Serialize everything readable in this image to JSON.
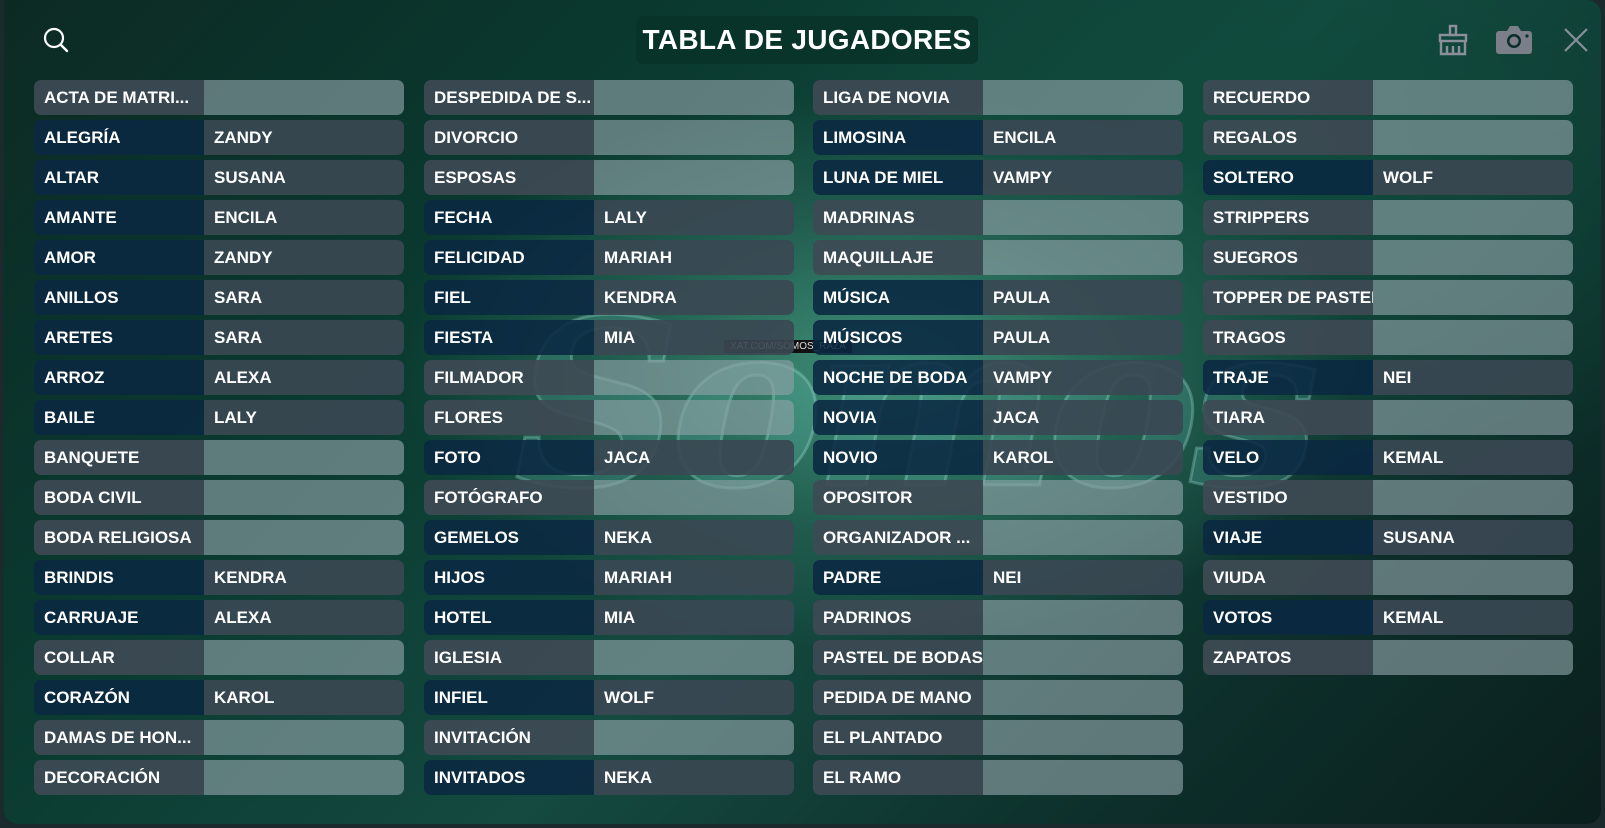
{
  "title": "TABLA DE JUGADORES",
  "icons": {
    "search": "search-icon",
    "clean": "broom-icon",
    "camera": "camera-icon",
    "close": "close-icon"
  },
  "watermark": {
    "text": "Somos Raza",
    "tag": "XAT.COM/SOMOS_RAZA"
  },
  "columns": [
    [
      [
        "ACTA DE MATRI...",
        ""
      ],
      [
        "ALEGRÍA",
        "ZANDY"
      ],
      [
        "ALTAR",
        "SUSANA"
      ],
      [
        "AMANTE",
        "ENCILA"
      ],
      [
        "AMOR",
        "ZANDY"
      ],
      [
        "ANILLOS",
        "SARA"
      ],
      [
        "ARETES",
        "SARA"
      ],
      [
        "ARROZ",
        "ALEXA"
      ],
      [
        "BAILE",
        "LALY"
      ],
      [
        "BANQUETE",
        ""
      ],
      [
        "BODA CIVIL",
        ""
      ],
      [
        "BODA RELIGIOSA",
        ""
      ],
      [
        "BRINDIS",
        "KENDRA"
      ],
      [
        "CARRUAJE",
        "ALEXA"
      ],
      [
        "COLLAR",
        ""
      ],
      [
        "CORAZÓN",
        "KAROL"
      ],
      [
        "DAMAS DE HON...",
        ""
      ],
      [
        "DECORACIÓN",
        ""
      ]
    ],
    [
      [
        "DESPEDIDA DE S...",
        ""
      ],
      [
        "DIVORCIO",
        ""
      ],
      [
        "ESPOSAS",
        ""
      ],
      [
        "FECHA",
        "LALY"
      ],
      [
        "FELICIDAD",
        "MARIAH"
      ],
      [
        "FIEL",
        "KENDRA"
      ],
      [
        "FIESTA",
        "MIA"
      ],
      [
        "FILMADOR",
        ""
      ],
      [
        "FLORES",
        ""
      ],
      [
        "FOTO",
        "JACA"
      ],
      [
        "FOTÓGRAFO",
        ""
      ],
      [
        "GEMELOS",
        "NEKA"
      ],
      [
        "HIJOS",
        "MARIAH"
      ],
      [
        "HOTEL",
        "MIA"
      ],
      [
        "IGLESIA",
        ""
      ],
      [
        "INFIEL",
        "WOLF"
      ],
      [
        "INVITACIÓN",
        ""
      ],
      [
        "INVITADOS",
        "NEKA"
      ]
    ],
    [
      [
        "LIGA DE NOVIA",
        ""
      ],
      [
        "LIMOSINA",
        "ENCILA"
      ],
      [
        "LUNA DE MIEL",
        "VAMPY"
      ],
      [
        "MADRINAS",
        ""
      ],
      [
        "MAQUILLAJE",
        ""
      ],
      [
        "MÚSICA",
        "PAULA"
      ],
      [
        "MÚSICOS",
        "PAULA"
      ],
      [
        "NOCHE DE BODA",
        "VAMPY"
      ],
      [
        "NOVIA",
        "JACA"
      ],
      [
        "NOVIO",
        "KAROL"
      ],
      [
        "OPOSITOR",
        ""
      ],
      [
        "ORGANIZADOR ...",
        ""
      ],
      [
        "PADRE",
        "NEI"
      ],
      [
        "PADRINOS",
        ""
      ],
      [
        "PASTEL DE BODAS",
        ""
      ],
      [
        "PEDIDA DE MANO",
        ""
      ],
      [
        "EL PLANTADO",
        ""
      ],
      [
        "EL RAMO",
        ""
      ]
    ],
    [
      [
        "RECUERDO",
        ""
      ],
      [
        "REGALOS",
        ""
      ],
      [
        "SOLTERO",
        "WOLF"
      ],
      [
        "STRIPPERS",
        ""
      ],
      [
        "SUEGROS",
        ""
      ],
      [
        "TOPPER DE PASTEL",
        ""
      ],
      [
        "TRAGOS",
        ""
      ],
      [
        "TRAJE",
        "NEI"
      ],
      [
        "TIARA",
        ""
      ],
      [
        "VELO",
        "KEMAL"
      ],
      [
        "VESTIDO",
        ""
      ],
      [
        "VIAJE",
        "SUSANA"
      ],
      [
        "VIUDA",
        ""
      ],
      [
        "VOTOS",
        "KEMAL"
      ],
      [
        "ZAPATOS",
        ""
      ]
    ]
  ]
}
